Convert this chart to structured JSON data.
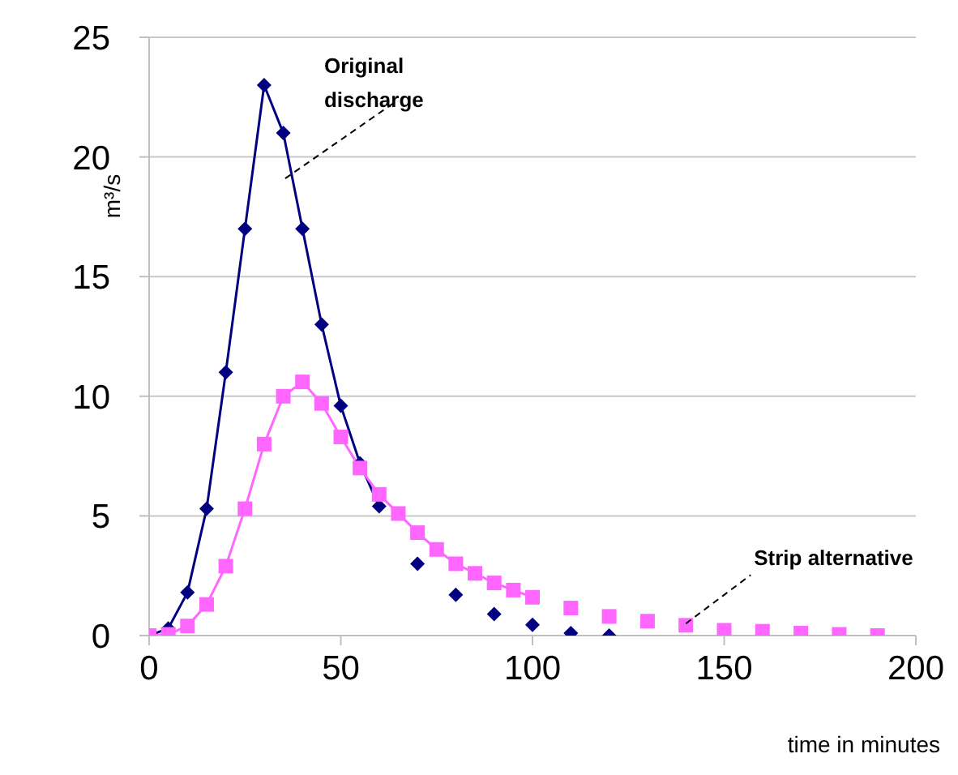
{
  "chart_data": {
    "type": "line",
    "ylabel": "m³/s",
    "xlabel": "time in minutes",
    "xlim": [
      0,
      200
    ],
    "xticks": [
      0,
      50,
      100,
      150,
      200
    ],
    "ylim": [
      0,
      25
    ],
    "yticks": [
      0,
      5,
      10,
      15,
      20,
      25
    ],
    "grid": "y",
    "annotations": [
      {
        "text": "Original discharge",
        "x": 35.5,
        "y": 19.1
      },
      {
        "text": "Strip alternative",
        "x": 140,
        "y": 0.5
      }
    ],
    "series": [
      {
        "type": "line",
        "color": "#000080",
        "marker": "diamond",
        "x": [
          0,
          5,
          10,
          15,
          20,
          25,
          30,
          35,
          40,
          45,
          50,
          55,
          60
        ],
        "values": [
          0,
          0.3,
          1.8,
          5.3,
          11,
          17,
          23,
          21,
          17,
          13,
          9.6,
          7.2,
          5.4
        ]
      },
      {
        "type": "scatter",
        "color": "#000080",
        "marker": "diamond",
        "x": [
          70,
          80,
          90,
          100,
          110,
          120
        ],
        "values": [
          3.0,
          1.7,
          0.9,
          0.45,
          0.1,
          0
        ]
      },
      {
        "type": "line",
        "color": "#ff66ff",
        "marker": "square",
        "x": [
          0,
          5,
          10,
          15,
          20,
          25,
          30,
          35,
          40,
          45,
          50,
          55,
          60,
          65,
          70,
          75,
          80,
          85,
          90,
          95,
          100
        ],
        "values": [
          0,
          0.05,
          0.4,
          1.3,
          2.9,
          5.3,
          8,
          10,
          10.6,
          9.7,
          8.3,
          7,
          5.9,
          5.1,
          4.3,
          3.6,
          3.0,
          2.6,
          2.2,
          1.9,
          1.6
        ]
      },
      {
        "type": "scatter",
        "color": "#ff66ff",
        "marker": "square",
        "x": [
          110,
          120,
          130,
          140,
          150,
          160,
          170,
          180,
          190
        ],
        "values": [
          1.15,
          0.8,
          0.6,
          0.43,
          0.22,
          0.18,
          0.1,
          0.05,
          0
        ]
      }
    ]
  }
}
